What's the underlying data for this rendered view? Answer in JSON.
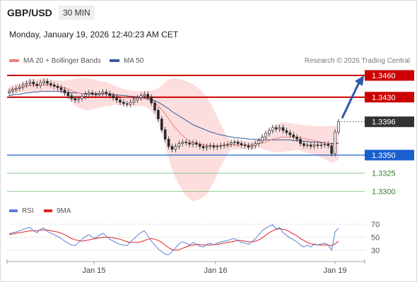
{
  "header": {
    "pair": "GBP/USD",
    "timeframe": "30 MIN",
    "datetime": "Monday, January 19, 2026 12:40:23 AM CET"
  },
  "legend": {
    "ma20_label": "MA 20 + Bollinger Bands",
    "ma50_label": "MA 50",
    "ma20_color": "#f08080",
    "ma50_color": "#3a5a9a"
  },
  "credit": "Research © 2026 Trading Central",
  "rsi_legend": {
    "rsi_label": "RSI",
    "ma_label": "9MA",
    "rsi_color": "#5b7fd6",
    "ma_color": "#e02020"
  },
  "colors": {
    "resistance": "#cc0000",
    "support": "#1a5fd0",
    "target": "#2e8b2e",
    "current": "#333333",
    "candle_up": "#2a2a2a",
    "candle_down": "#2a2a2a",
    "arrow": "#2b5aa8"
  },
  "chart_data": [
    {
      "type": "candlestick",
      "x_tick_labels": [
        "Jan 15",
        "Jan 16",
        "Jan 19"
      ],
      "ylim": [
        1.328,
        1.348
      ],
      "levels": [
        {
          "value": 1.346,
          "label": "1.3460",
          "kind": "resistance"
        },
        {
          "value": 1.343,
          "label": "1.3430",
          "kind": "resistance"
        },
        {
          "value": 1.3396,
          "label": "1.3396",
          "kind": "current"
        },
        {
          "value": 1.335,
          "label": "1.3350",
          "kind": "support"
        },
        {
          "value": 1.3325,
          "label": "1.3325",
          "kind": "target"
        },
        {
          "value": 1.33,
          "label": "1.3300",
          "kind": "target"
        }
      ],
      "close": [
        1.3438,
        1.344,
        1.3442,
        1.3444,
        1.3447,
        1.3449,
        1.3451,
        1.3448,
        1.3446,
        1.345,
        1.3452,
        1.3449,
        1.3447,
        1.3445,
        1.3443,
        1.344,
        1.3436,
        1.3432,
        1.3428,
        1.3426,
        1.3428,
        1.3431,
        1.3434,
        1.3436,
        1.3434,
        1.3433,
        1.3435,
        1.3437,
        1.3435,
        1.3432,
        1.3429,
        1.3426,
        1.3423,
        1.3421,
        1.342,
        1.3423,
        1.3426,
        1.3429,
        1.3432,
        1.3434,
        1.343,
        1.3422,
        1.3412,
        1.34,
        1.3385,
        1.3372,
        1.3362,
        1.3358,
        1.3362,
        1.3366,
        1.3368,
        1.3367,
        1.3365,
        1.3367,
        1.3365,
        1.3362,
        1.336,
        1.3362,
        1.3363,
        1.3361,
        1.3362,
        1.3363,
        1.3364,
        1.3365,
        1.3367,
        1.3368,
        1.3366,
        1.3364,
        1.3363,
        1.3361,
        1.3363,
        1.3366,
        1.337,
        1.3375,
        1.338,
        1.3384,
        1.3388,
        1.3386,
        1.3388,
        1.3384,
        1.3381,
        1.3378,
        1.3375,
        1.3372,
        1.3366,
        1.3363,
        1.3364,
        1.3362,
        1.3364,
        1.3363,
        1.3364,
        1.3365,
        1.3363,
        1.3352,
        1.3382,
        1.3396
      ],
      "ma20": [
        1.344,
        1.3441,
        1.3442,
        1.3443,
        1.3444,
        1.3445,
        1.3446,
        1.3446,
        1.3446,
        1.3447,
        1.3447,
        1.3447,
        1.3446,
        1.3446,
        1.3445,
        1.3444,
        1.3443,
        1.3441,
        1.3439,
        1.3437,
        1.3436,
        1.3435,
        1.3434,
        1.3434,
        1.3434,
        1.3434,
        1.3434,
        1.3434,
        1.3434,
        1.3433,
        1.3433,
        1.3432,
        1.3431,
        1.343,
        1.3429,
        1.3429,
        1.3428,
        1.3428,
        1.3428,
        1.3428,
        1.3427,
        1.3425,
        1.3422,
        1.3418,
        1.3413,
        1.3407,
        1.34,
        1.3393,
        1.3387,
        1.3382,
        1.3377,
        1.3373,
        1.337,
        1.3367,
        1.3366,
        1.3365,
        1.3364,
        1.3363,
        1.3363,
        1.3363,
        1.3363,
        1.3363,
        1.3363,
        1.3363,
        1.3364,
        1.3364,
        1.3364,
        1.3364,
        1.3364,
        1.3364,
        1.3364,
        1.3365,
        1.3366,
        1.3367,
        1.3368,
        1.337,
        1.3372,
        1.3373,
        1.3374,
        1.3375,
        1.3375,
        1.3375,
        1.3375,
        1.3375,
        1.3374,
        1.3373,
        1.3372,
        1.3371,
        1.337,
        1.3369,
        1.3368,
        1.3367,
        1.3366,
        1.3365,
        1.3366,
        1.3368
      ],
      "ma50": [
        1.3432,
        1.3433,
        1.3434,
        1.3434,
        1.3435,
        1.3436,
        1.3436,
        1.3437,
        1.3437,
        1.3438,
        1.3438,
        1.3438,
        1.3438,
        1.3438,
        1.3438,
        1.3438,
        1.3437,
        1.3437,
        1.3436,
        1.3436,
        1.3436,
        1.3435,
        1.3435,
        1.3435,
        1.3435,
        1.3435,
        1.3435,
        1.3435,
        1.3434,
        1.3434,
        1.3434,
        1.3433,
        1.3433,
        1.3432,
        1.3432,
        1.3431,
        1.3431,
        1.343,
        1.343,
        1.3429,
        1.3428,
        1.3427,
        1.3425,
        1.3423,
        1.342,
        1.3417,
        1.3414,
        1.341,
        1.3407,
        1.3404,
        1.3401,
        1.3398,
        1.3395,
        1.3392,
        1.339,
        1.3388,
        1.3386,
        1.3384,
        1.3382,
        1.3381,
        1.3379,
        1.3378,
        1.3377,
        1.3376,
        1.3375,
        1.3374,
        1.3374,
        1.3373,
        1.3373,
        1.3372,
        1.3372,
        1.3372,
        1.3371,
        1.3371,
        1.3371,
        1.3371,
        1.3371,
        1.3371,
        1.3371,
        1.3371,
        1.3371,
        1.3371,
        1.337,
        1.337,
        1.337,
        1.3369,
        1.3369,
        1.3368,
        1.3368,
        1.3368,
        1.3367,
        1.3367,
        1.3366,
        1.3366,
        1.3366,
        1.3366
      ]
    },
    {
      "type": "line",
      "name": "RSI",
      "yticks": [
        70,
        50,
        30
      ],
      "ylim": [
        20,
        80
      ],
      "rsi": [
        55,
        57,
        58,
        60,
        62,
        64,
        65,
        60,
        57,
        62,
        64,
        59,
        56,
        54,
        51,
        48,
        44,
        41,
        38,
        37,
        42,
        47,
        51,
        54,
        50,
        49,
        53,
        56,
        52,
        47,
        44,
        41,
        39,
        38,
        37,
        43,
        48,
        53,
        57,
        60,
        52,
        44,
        38,
        32,
        28,
        24,
        23,
        28,
        34,
        40,
        43,
        41,
        38,
        42,
        39,
        36,
        35,
        39,
        41,
        38,
        41,
        43,
        44,
        45,
        47,
        48,
        45,
        42,
        41,
        39,
        43,
        48,
        54,
        60,
        64,
        67,
        69,
        63,
        65,
        57,
        53,
        49,
        46,
        43,
        38,
        35,
        38,
        35,
        40,
        38,
        40,
        41,
        38,
        30,
        58,
        64
      ],
      "ma9": [
        54,
        55,
        56,
        57,
        58,
        59,
        60,
        60,
        60,
        61,
        61,
        61,
        60,
        59,
        58,
        56,
        54,
        51,
        48,
        46,
        45,
        44,
        45,
        46,
        47,
        48,
        49,
        50,
        50,
        50,
        49,
        48,
        47,
        45,
        43,
        42,
        42,
        42,
        43,
        45,
        47,
        48,
        47,
        45,
        42,
        38,
        34,
        31,
        30,
        31,
        33,
        35,
        37,
        38,
        39,
        39,
        38,
        38,
        38,
        39,
        39,
        40,
        41,
        42,
        43,
        44,
        45,
        45,
        44,
        43,
        43,
        44,
        46,
        49,
        53,
        57,
        60,
        62,
        63,
        62,
        61,
        58,
        55,
        52,
        48,
        45,
        42,
        40,
        39,
        38,
        38,
        38,
        38,
        37,
        40,
        44
      ]
    }
  ]
}
